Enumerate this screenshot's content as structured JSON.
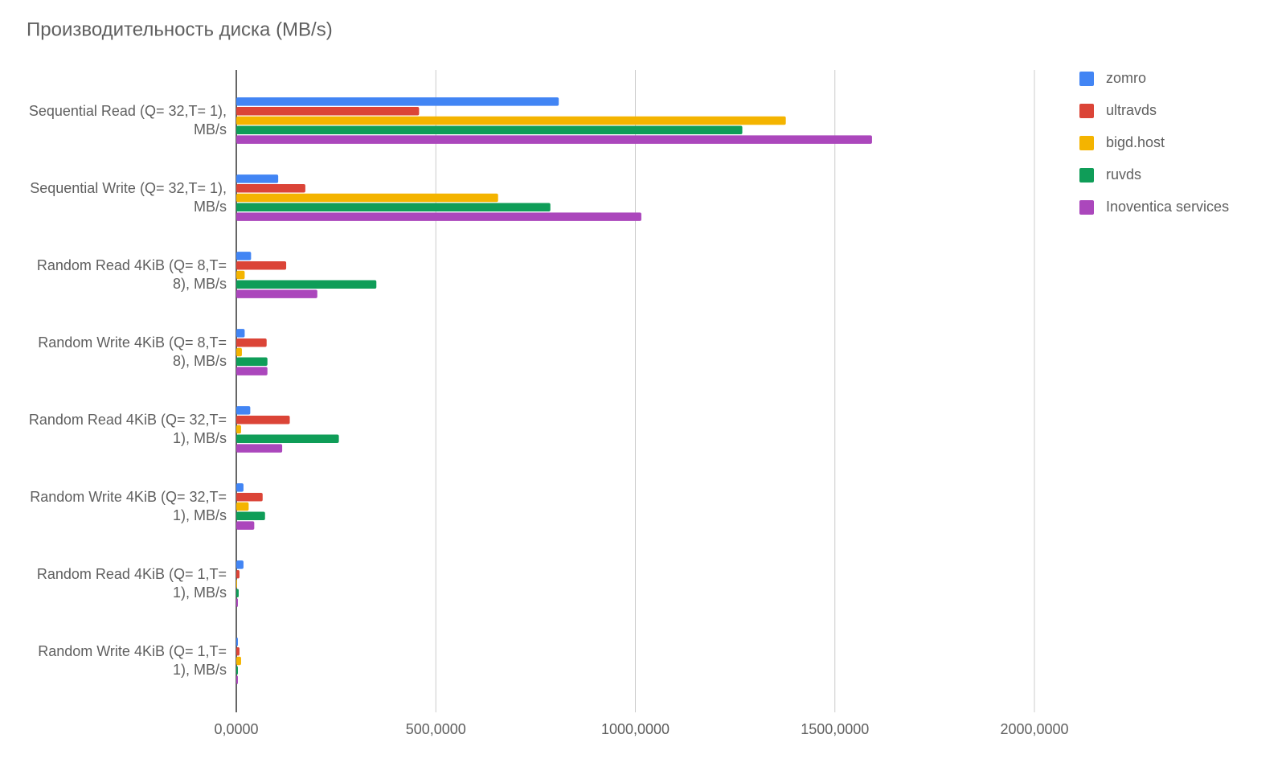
{
  "chart_data": {
    "type": "bar",
    "orientation": "horizontal",
    "title": "Производительность диска (MB/s)",
    "categories": [
      "Sequential Read (Q= 32,T= 1), MB/s",
      "Sequential Write (Q= 32,T= 1), MB/s",
      "Random Read 4KiB (Q= 8,T= 8), MB/s",
      "Random Write 4KiB (Q= 8,T= 8), MB/s",
      "Random Read 4KiB (Q= 32,T= 1), MB/s",
      "Random Write 4KiB (Q= 32,T= 1), MB/s",
      "Random Read 4KiB (Q= 1,T= 1), MB/s",
      "Random Write 4KiB (Q= 1,T= 1), MB/s"
    ],
    "series": [
      {
        "name": "zomro",
        "color": "#4285f4",
        "values": [
          808,
          105,
          37,
          21,
          35,
          18,
          18,
          4
        ]
      },
      {
        "name": "ultravds",
        "color": "#db4437",
        "values": [
          458,
          173,
          125,
          76,
          134,
          66,
          8,
          8
        ]
      },
      {
        "name": "bigd.host",
        "color": "#f4b400",
        "values": [
          1377,
          656,
          21,
          14,
          12,
          31,
          2,
          12
        ]
      },
      {
        "name": "ruvds",
        "color": "#0f9d58",
        "values": [
          1268,
          787,
          351,
          78,
          257,
          72,
          6,
          4
        ]
      },
      {
        "name": "Inoventica services",
        "color": "#ab47bc",
        "values": [
          1593,
          1015,
          203,
          78,
          115,
          45,
          4,
          4
        ]
      }
    ],
    "xlim": [
      0,
      2000
    ],
    "xticks": [
      {
        "value": 0,
        "label": "0,0000"
      },
      {
        "value": 500,
        "label": "500,0000"
      },
      {
        "value": 1000,
        "label": "1000,0000"
      },
      {
        "value": 1500,
        "label": "1500,0000"
      },
      {
        "value": 2000,
        "label": "2000,0000"
      }
    ],
    "grid": true,
    "legend": "right"
  }
}
